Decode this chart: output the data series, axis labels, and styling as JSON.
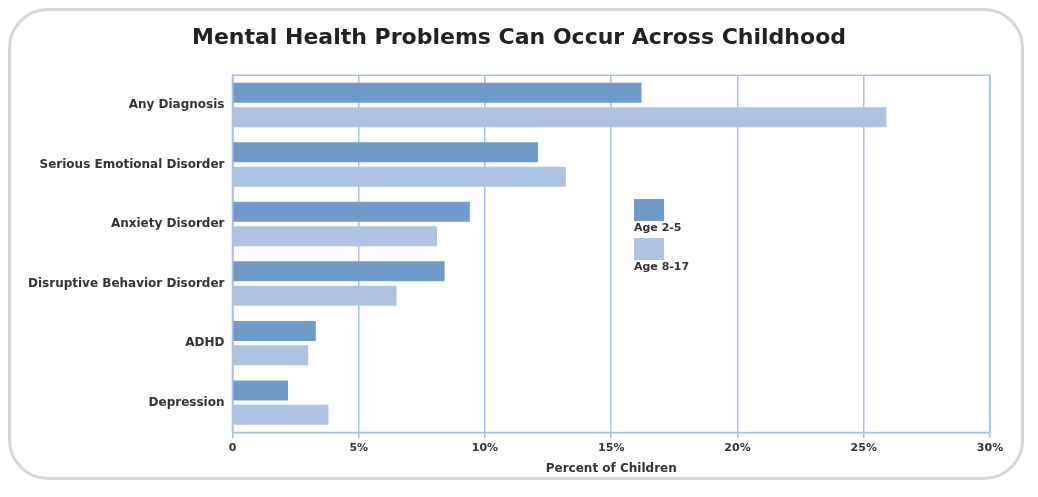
{
  "chart_data": {
    "type": "bar",
    "orientation": "horizontal",
    "title": "Mental Health Problems Can Occur Across Childhood",
    "xlabel": "Percent of Children",
    "categories": [
      "Any Diagnosis",
      "Serious Emotional Disorder",
      "Anxiety Disorder",
      "Disruptive Behavior Disorder",
      "ADHD",
      "Depression"
    ],
    "series": [
      {
        "name": "Age 2-5",
        "color": "#6f9bc9",
        "values": [
          16.2,
          12.1,
          9.4,
          8.4,
          3.3,
          2.2
        ]
      },
      {
        "name": "Age 8-17",
        "color": "#aec3e2",
        "values": [
          25.9,
          13.2,
          8.1,
          6.5,
          3.0,
          3.8
        ]
      }
    ],
    "xlim": [
      0,
      30
    ],
    "xticks": [
      0,
      {
        "value": 5,
        "label": "5%"
      },
      {
        "value": 10,
        "label": "10%"
      },
      {
        "value": 15,
        "label": "15%"
      },
      {
        "value": 20,
        "label": "20%"
      },
      {
        "value": 25,
        "label": "25%"
      },
      {
        "value": 30,
        "label": "30%"
      }
    ],
    "grid": "x",
    "legend": "right"
  }
}
